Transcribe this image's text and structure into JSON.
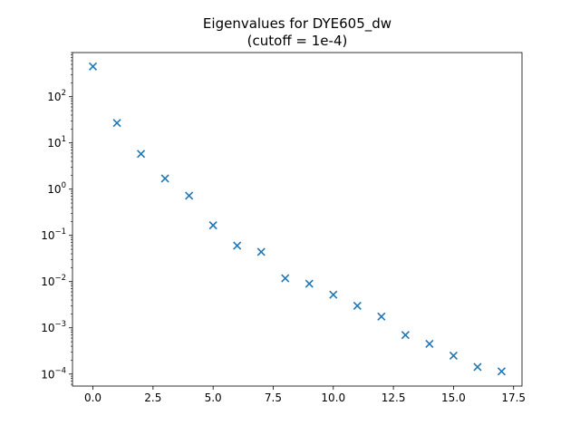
{
  "chart_data": {
    "type": "scatter",
    "title": "Eigenvalues for DYE605_dw",
    "subtitle": "(cutoff = 1e-4)",
    "xlabel": "",
    "ylabel": "",
    "yscale": "log",
    "grid": false,
    "marker": "x",
    "color": "#1f77b4",
    "xlim": [
      -0.85,
      17.85
    ],
    "ylim": [
      5.5e-05,
      900
    ],
    "x_ticks": [
      0.0,
      2.5,
      5.0,
      7.5,
      10.0,
      12.5,
      15.0,
      17.5
    ],
    "x_tick_labels": [
      "0.0",
      "2.5",
      "5.0",
      "7.5",
      "10.0",
      "12.5",
      "15.0",
      "17.5"
    ],
    "y_ticks": [
      {
        "value": 0.0001,
        "base": "10",
        "exp": "−4"
      },
      {
        "value": 0.001,
        "base": "10",
        "exp": "−3"
      },
      {
        "value": 0.01,
        "base": "10",
        "exp": "−2"
      },
      {
        "value": 0.1,
        "base": "10",
        "exp": "−1"
      },
      {
        "value": 1,
        "base": "10",
        "exp": "0"
      },
      {
        "value": 10,
        "base": "10",
        "exp": "1"
      },
      {
        "value": 100,
        "base": "10",
        "exp": "2"
      }
    ],
    "x": [
      0,
      1,
      2,
      3,
      4,
      5,
      6,
      7,
      8,
      9,
      10,
      11,
      12,
      13,
      14,
      15,
      16,
      17
    ],
    "y": [
      450,
      27,
      5.8,
      1.7,
      0.72,
      0.165,
      0.06,
      0.044,
      0.0118,
      0.009,
      0.0052,
      0.003,
      0.00175,
      0.0007,
      0.00045,
      0.00025,
      0.000142,
      0.000114
    ]
  }
}
